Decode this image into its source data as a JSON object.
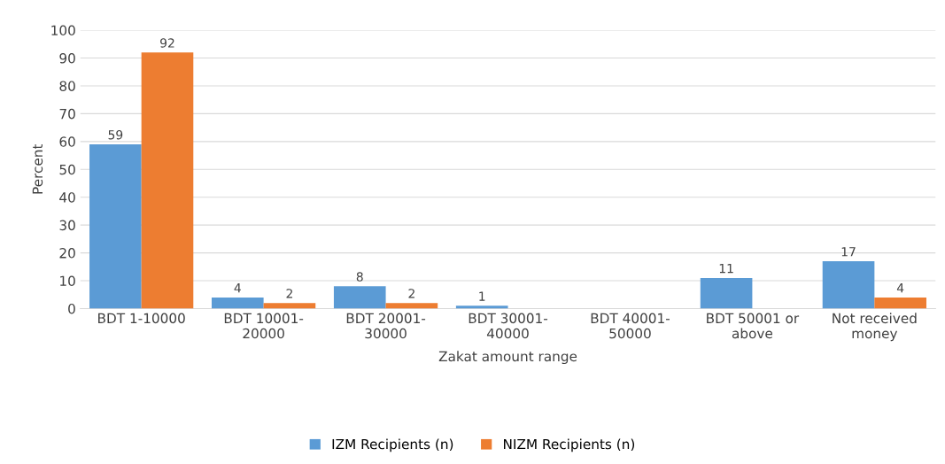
{
  "chart_data": {
    "type": "bar",
    "xlabel": "Zakat amount range",
    "ylabel": "Percent",
    "categories": [
      "BDT 1-10000",
      "BDT 10001-\n20000",
      "BDT 20001-\n30000",
      "BDT 30001-\n40000",
      "BDT 40001-\n50000",
      "BDT 50001 or\nabove",
      "Not received\nmoney"
    ],
    "series": [
      {
        "name": "IZM Recipients (n)",
        "color": "#5b9bd5",
        "values": [
          59,
          4,
          8,
          1,
          null,
          11,
          17
        ]
      },
      {
        "name": "NIZM Recipients (n)",
        "color": "#ed7d31",
        "values": [
          92,
          2,
          2,
          null,
          null,
          null,
          4
        ]
      }
    ],
    "ylim": [
      0,
      100
    ],
    "yticks": [
      0,
      10,
      20,
      30,
      40,
      50,
      60,
      70,
      80,
      90,
      100
    ],
    "grid": "y",
    "legend": "bottom",
    "data_labels": true
  }
}
